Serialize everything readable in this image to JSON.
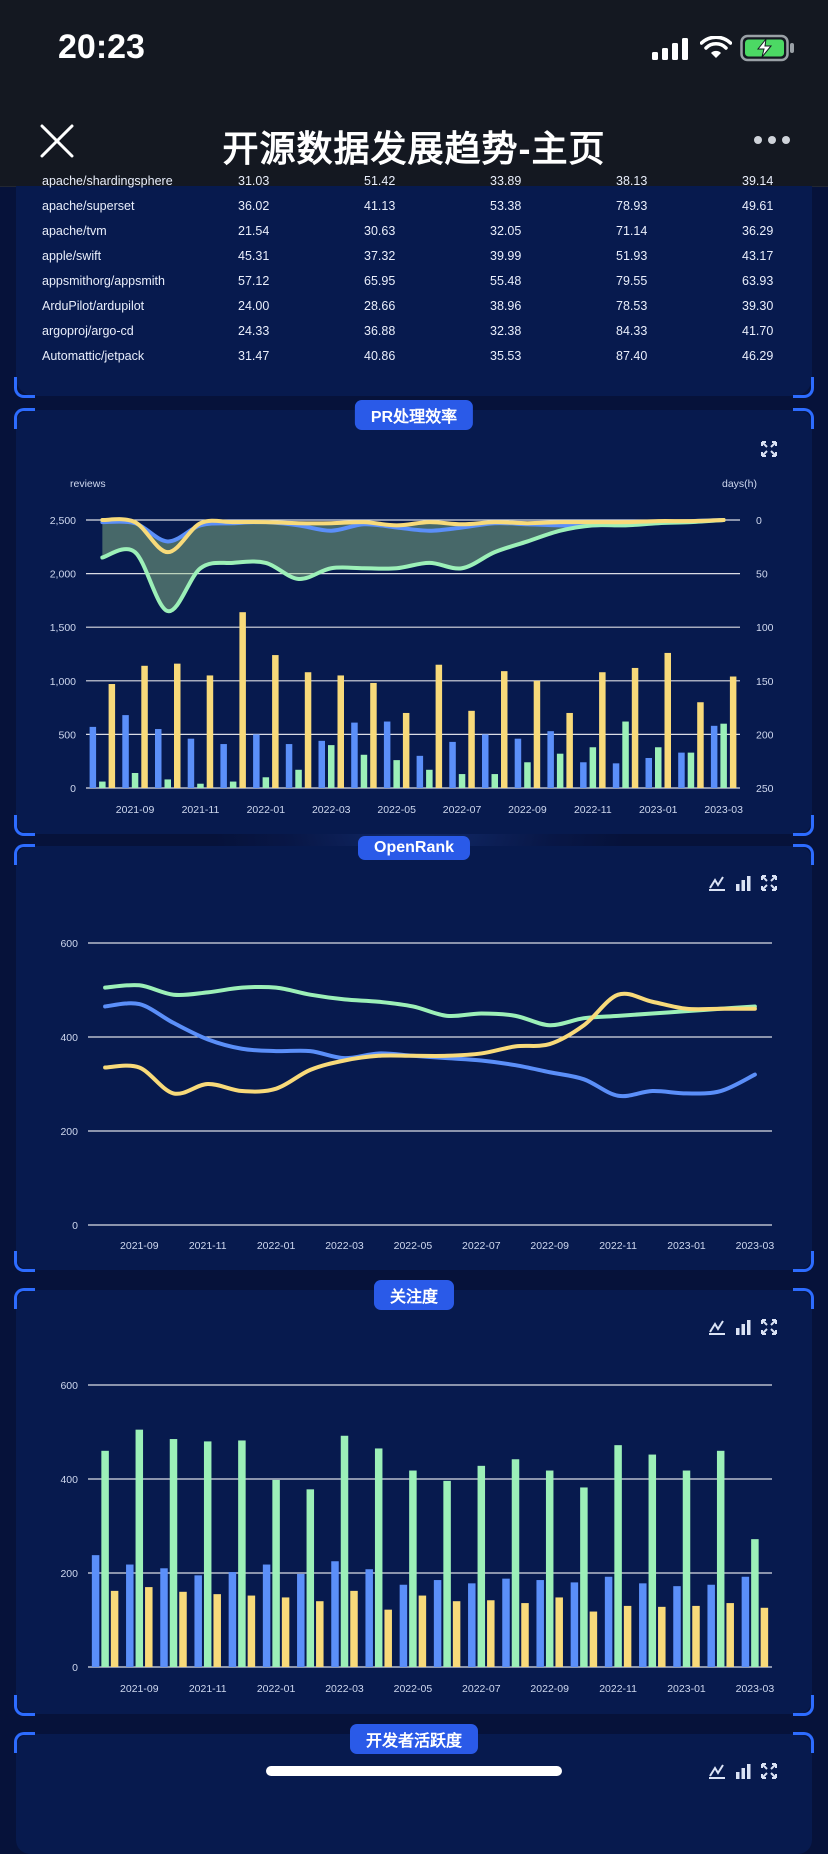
{
  "status_bar": {
    "time": "20:23"
  },
  "nav": {
    "title": "开源数据发展趋势-主页"
  },
  "table": {
    "rows": [
      {
        "repo": "apache/shardingsphere",
        "v1": "31.03",
        "v2": "51.42",
        "v3": "33.89",
        "v4": "38.13",
        "v5": "39.14"
      },
      {
        "repo": "apache/superset",
        "v1": "36.02",
        "v2": "41.13",
        "v3": "53.38",
        "v4": "78.93",
        "v5": "49.61"
      },
      {
        "repo": "apache/tvm",
        "v1": "21.54",
        "v2": "30.63",
        "v3": "32.05",
        "v4": "71.14",
        "v5": "36.29"
      },
      {
        "repo": "apple/swift",
        "v1": "45.31",
        "v2": "37.32",
        "v3": "39.99",
        "v4": "51.93",
        "v5": "43.17"
      },
      {
        "repo": "appsmithorg/appsmith",
        "v1": "57.12",
        "v2": "65.95",
        "v3": "55.48",
        "v4": "79.55",
        "v5": "63.93"
      },
      {
        "repo": "ArduPilot/ardupilot",
        "v1": "24.00",
        "v2": "28.66",
        "v3": "38.96",
        "v4": "78.53",
        "v5": "39.30"
      },
      {
        "repo": "argoproj/argo-cd",
        "v1": "24.33",
        "v2": "36.88",
        "v3": "32.38",
        "v4": "84.33",
        "v5": "41.70"
      },
      {
        "repo": "Automattic/jetpack",
        "v1": "31.47",
        "v2": "40.86",
        "v3": "35.53",
        "v4": "87.40",
        "v5": "46.29"
      }
    ]
  },
  "panels": {
    "pr": {
      "title": "PR处理效率"
    },
    "openrank": {
      "title": "OpenRank"
    },
    "attention": {
      "title": "关注度"
    },
    "activity": {
      "title": "开发者活跃度"
    }
  },
  "colors": {
    "blue": "#5b8ff9",
    "green": "#9cf0b8",
    "yellow": "#f8da7a",
    "accent": "#2a5ae8"
  },
  "icons": [
    "close-icon",
    "more-icon",
    "expand-icon",
    "line-chart-icon",
    "bar-chart-icon",
    "signal-icon",
    "wifi-icon",
    "battery-icon"
  ],
  "chart_data": [
    {
      "type": "bar",
      "title": "PR处理效率",
      "xlabel": "",
      "ylabel": "reviews",
      "y2label": "days(h)",
      "ylim": [
        0,
        2500
      ],
      "y2lim": [
        0,
        250
      ],
      "y2_inverted": true,
      "ticks_y": [
        "0",
        "500",
        "1,000",
        "1,500",
        "2,000",
        "2,500"
      ],
      "ticks_y2": [
        "0",
        "50",
        "100",
        "150",
        "200",
        "250"
      ],
      "categories": [
        "2021-08",
        "2021-09",
        "2021-10",
        "2021-11",
        "2021-12",
        "2022-01",
        "2022-02",
        "2022-03",
        "2022-04",
        "2022-05",
        "2022-06",
        "2022-07",
        "2022-08",
        "2022-09",
        "2022-10",
        "2022-11",
        "2022-12",
        "2023-01",
        "2023-02",
        "2023-03"
      ],
      "tick_labels": [
        "2021-09",
        "2021-11",
        "2022-01",
        "2022-03",
        "2022-05",
        "2022-07",
        "2022-09",
        "2022-11",
        "2023-01",
        "2023-03"
      ],
      "bar_series": [
        {
          "values": [
            570,
            680,
            550,
            460,
            410,
            500,
            410,
            440,
            610,
            620,
            300,
            430,
            500,
            460,
            530,
            240,
            230,
            280,
            330,
            580
          ]
        },
        {
          "values": [
            60,
            140,
            80,
            40,
            60,
            100,
            170,
            400,
            310,
            260,
            170,
            130,
            130,
            240,
            320,
            380,
            620,
            380,
            330,
            600
          ]
        },
        {
          "values": [
            970,
            1140,
            1160,
            1050,
            1640,
            1240,
            1080,
            1050,
            980,
            700,
            1150,
            720,
            1090,
            1000,
            700,
            1080,
            1120,
            1260,
            800,
            1040
          ]
        }
      ],
      "line_series": [
        {
          "values": [
            2,
            3,
            20,
            5,
            3,
            2,
            5,
            10,
            4,
            7,
            10,
            7,
            3,
            4,
            5,
            5,
            3,
            2,
            1,
            0
          ]
        },
        {
          "values": [
            0,
            2,
            30,
            3,
            2,
            2,
            3,
            3,
            2,
            5,
            2,
            4,
            2,
            3,
            2,
            2,
            2,
            1,
            1,
            0
          ]
        },
        {
          "values": [
            35,
            30,
            85,
            45,
            40,
            40,
            55,
            45,
            45,
            45,
            40,
            45,
            30,
            20,
            10,
            5,
            5,
            3,
            2,
            0
          ]
        }
      ]
    },
    {
      "type": "line",
      "title": "OpenRank",
      "xlabel": "",
      "ylabel": "",
      "ylim": [
        0,
        600
      ],
      "ticks_y": [
        "0",
        "200",
        "400",
        "600"
      ],
      "categories": [
        "2021-08",
        "2021-09",
        "2021-10",
        "2021-11",
        "2021-12",
        "2022-01",
        "2022-02",
        "2022-03",
        "2022-04",
        "2022-05",
        "2022-06",
        "2022-07",
        "2022-08",
        "2022-09",
        "2022-10",
        "2022-11",
        "2022-12",
        "2023-01",
        "2023-02",
        "2023-03"
      ],
      "tick_labels": [
        "2021-09",
        "2021-11",
        "2022-01",
        "2022-03",
        "2022-05",
        "2022-07",
        "2022-09",
        "2022-11",
        "2023-01",
        "2023-03"
      ],
      "series": [
        {
          "values": [
            465,
            470,
            430,
            395,
            375,
            370,
            370,
            355,
            365,
            360,
            355,
            350,
            340,
            325,
            310,
            275,
            285,
            280,
            285,
            320
          ]
        },
        {
          "values": [
            505,
            510,
            490,
            495,
            505,
            505,
            490,
            480,
            475,
            465,
            445,
            450,
            445,
            425,
            440,
            445,
            450,
            455,
            460,
            465
          ]
        },
        {
          "values": [
            335,
            335,
            280,
            300,
            285,
            290,
            330,
            350,
            360,
            360,
            360,
            365,
            380,
            385,
            425,
            490,
            475,
            460,
            460,
            460
          ]
        }
      ]
    },
    {
      "type": "bar",
      "title": "关注度",
      "xlabel": "",
      "ylabel": "",
      "ylim": [
        0,
        600
      ],
      "ticks_y": [
        "0",
        "200",
        "400",
        "600"
      ],
      "categories": [
        "2021-08",
        "2021-09",
        "2021-10",
        "2021-11",
        "2021-12",
        "2022-01",
        "2022-02",
        "2022-03",
        "2022-04",
        "2022-05",
        "2022-06",
        "2022-07",
        "2022-08",
        "2022-09",
        "2022-10",
        "2022-11",
        "2022-12",
        "2023-01",
        "2023-02",
        "2023-03"
      ],
      "tick_labels": [
        "2021-09",
        "2021-11",
        "2022-01",
        "2022-03",
        "2022-05",
        "2022-07",
        "2022-09",
        "2022-11",
        "2023-01",
        "2023-03"
      ],
      "series": [
        {
          "values": [
            238,
            218,
            210,
            195,
            202,
            218,
            198,
            225,
            208,
            175,
            185,
            178,
            188,
            185,
            180,
            192,
            178,
            172,
            175,
            192
          ]
        },
        {
          "values": [
            460,
            505,
            485,
            480,
            482,
            398,
            378,
            492,
            465,
            418,
            396,
            428,
            442,
            418,
            382,
            472,
            452,
            418,
            460,
            272
          ]
        },
        {
          "values": [
            162,
            170,
            160,
            155,
            152,
            148,
            140,
            162,
            122,
            152,
            140,
            142,
            136,
            148,
            118,
            130,
            128,
            130,
            136,
            126
          ]
        }
      ]
    }
  ]
}
